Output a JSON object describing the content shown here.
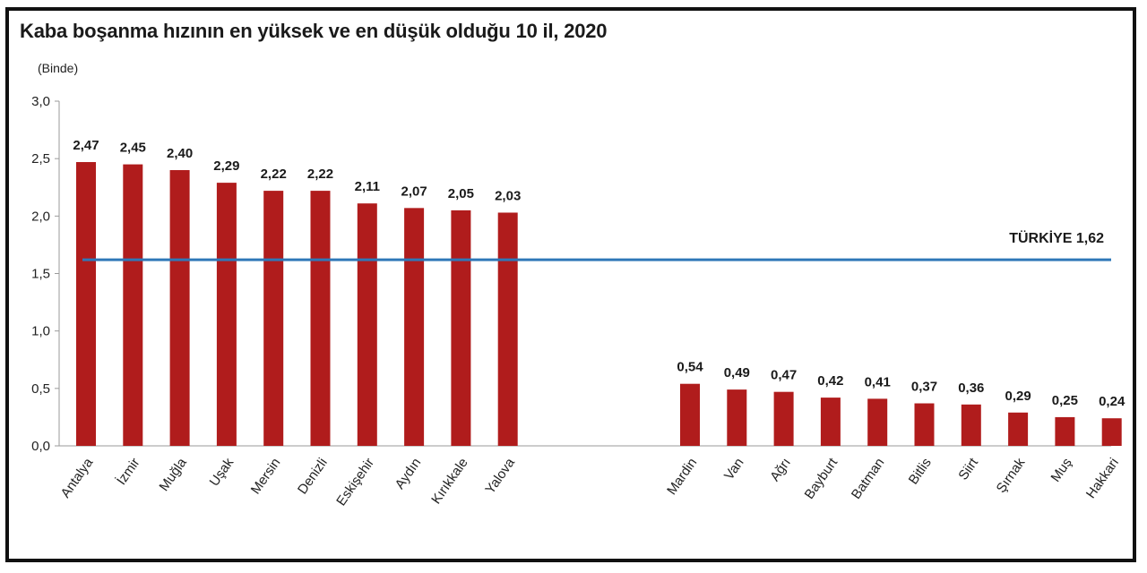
{
  "chart_data": {
    "type": "bar",
    "title": "Kaba boşanma hızının en yüksek ve en düşük olduğu 10 il, 2020",
    "ylabel": "(Binde)",
    "ylim": [
      0,
      3.0
    ],
    "yticks": [
      "0,0",
      "0,5",
      "1,0",
      "1,5",
      "2,0",
      "2,5",
      "3,0"
    ],
    "ytick_values": [
      0,
      0.5,
      1.0,
      1.5,
      2.0,
      2.5,
      3.0
    ],
    "grid": false,
    "bar_color": "#b01c1c",
    "reference_line": {
      "label": "TÜRKİYE 1,62",
      "value": 1.62,
      "color": "#2f78b8"
    },
    "groups": [
      {
        "categories": [
          "Antalya",
          "İzmir",
          "Muğla",
          "Uşak",
          "Mersin",
          "Denizli",
          "Eskişehir",
          "Aydın",
          "Kırıkkale",
          "Yalova"
        ],
        "values": [
          2.47,
          2.45,
          2.4,
          2.29,
          2.22,
          2.22,
          2.11,
          2.07,
          2.05,
          2.03
        ],
        "labels": [
          "2,47",
          "2,45",
          "2,40",
          "2,29",
          "2,22",
          "2,22",
          "2,11",
          "2,07",
          "2,05",
          "2,03"
        ]
      },
      {
        "categories": [
          "Mardin",
          "Van",
          "Ağrı",
          "Bayburt",
          "Batman",
          "Bitlis",
          "Siirt",
          "Şırnak",
          "Muş",
          "Hakkari"
        ],
        "values": [
          0.54,
          0.49,
          0.47,
          0.42,
          0.41,
          0.37,
          0.36,
          0.29,
          0.25,
          0.24
        ],
        "labels": [
          "0,54",
          "0,49",
          "0,47",
          "0,42",
          "0,41",
          "0,37",
          "0,36",
          "0,29",
          "0,25",
          "0,24"
        ]
      }
    ]
  }
}
